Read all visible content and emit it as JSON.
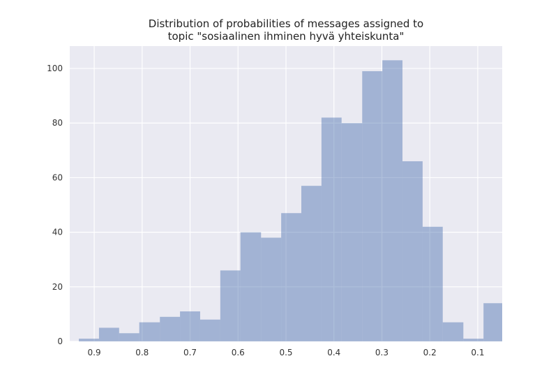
{
  "chart_data": {
    "type": "histogram",
    "title": "Distribution of probabilities of messages assigned to\ntopic \"sosiaalinen ihminen hyvä yhteiskunta\"",
    "bins": [
      0.046,
      0.088,
      0.13,
      0.173,
      0.215,
      0.257,
      0.299,
      0.341,
      0.384,
      0.426,
      0.468,
      0.51,
      0.552,
      0.595,
      0.637,
      0.679,
      0.721,
      0.763,
      0.806,
      0.848,
      0.89,
      0.932
    ],
    "values": [
      14,
      1,
      7,
      42,
      66,
      103,
      99,
      80,
      82,
      57,
      47,
      38,
      40,
      26,
      8,
      11,
      9,
      7,
      3,
      5,
      1
    ],
    "color": "#4c72b0",
    "opacity": 0.45,
    "xlim": [
      0.951,
      0.049
    ],
    "x_inverted": true,
    "xticks": [
      0.9,
      0.8,
      0.7,
      0.6,
      0.5,
      0.4,
      0.3,
      0.2,
      0.1
    ],
    "ylim": [
      0,
      108.2
    ],
    "yticks": [
      0,
      20,
      40,
      60,
      80,
      100
    ],
    "grid": true
  }
}
